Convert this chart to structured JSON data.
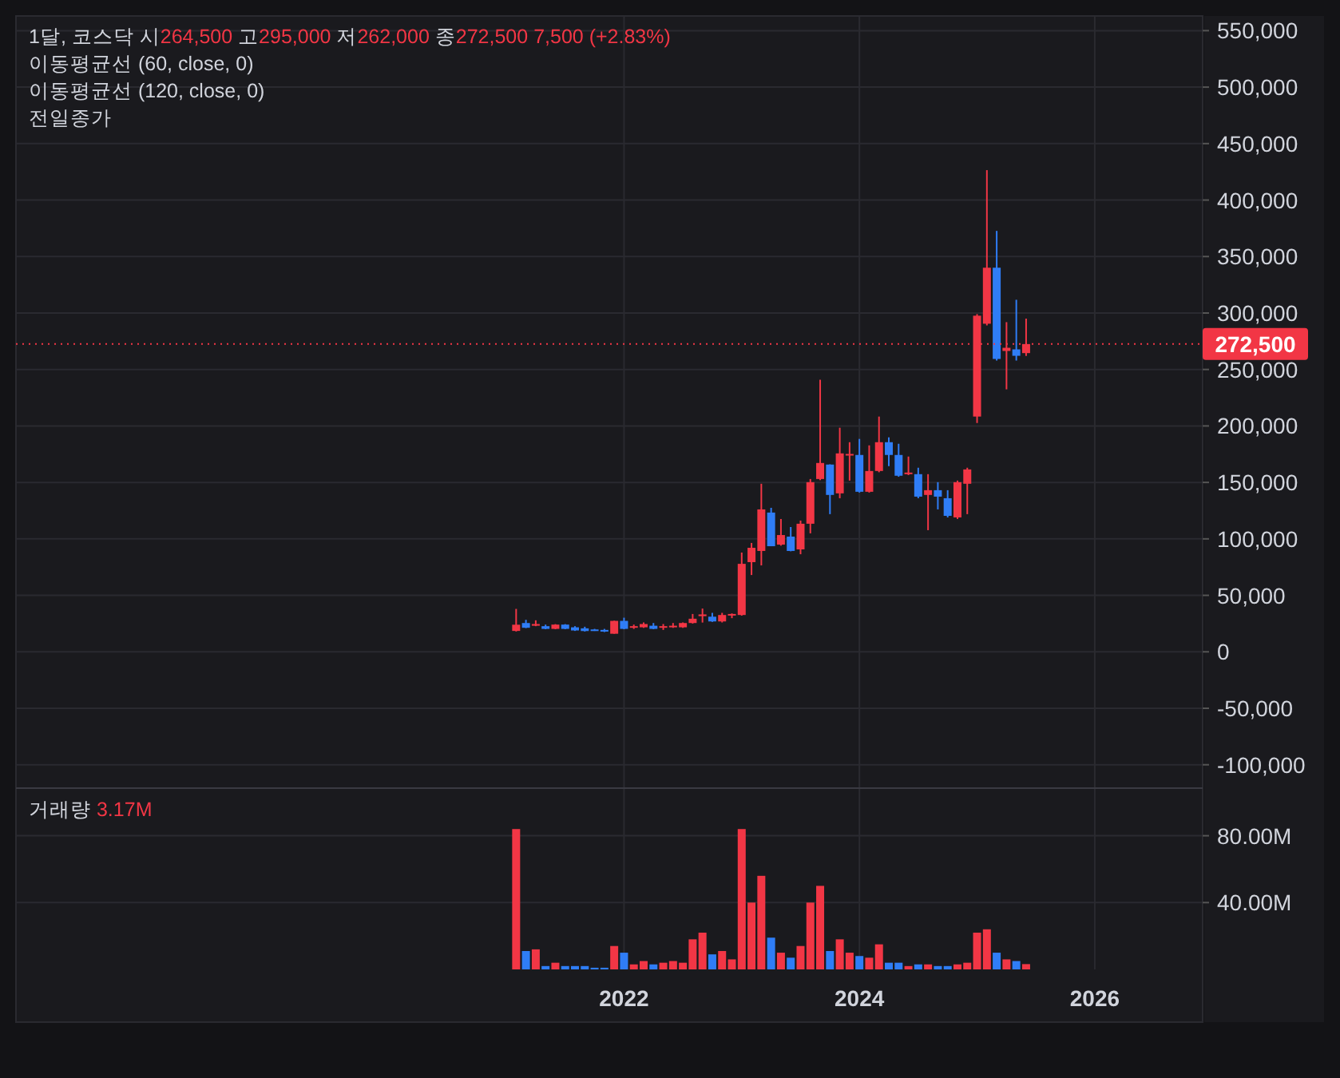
{
  "chart_data": [
    {
      "type": "candlestick",
      "title": "1달, 코스닥",
      "annotations": [
        "시264,500",
        "고295,000",
        "저262,000",
        "종272,500",
        "7,500 (+2.83%)",
        "이동평균선 (60, close, 0)",
        "이동평균선 (120, close, 0)",
        "전일종가"
      ],
      "x": [
        "2021-02",
        "2021-03",
        "2021-04",
        "2021-05",
        "2021-06",
        "2021-07",
        "2021-08",
        "2021-09",
        "2021-10",
        "2021-11",
        "2021-12",
        "2022-01",
        "2022-02",
        "2022-03",
        "2022-04",
        "2022-05",
        "2022-06",
        "2022-07",
        "2022-08",
        "2022-09",
        "2022-10",
        "2022-11",
        "2022-12",
        "2023-01",
        "2023-02",
        "2023-03",
        "2023-04",
        "2023-05",
        "2023-06",
        "2023-07",
        "2023-08",
        "2023-09",
        "2023-10",
        "2023-11",
        "2023-12",
        "2024-01",
        "2024-02",
        "2024-03",
        "2024-04",
        "2024-05",
        "2024-06",
        "2024-07",
        "2024-08",
        "2024-09",
        "2024-10",
        "2024-11",
        "2024-12",
        "2025-01",
        "2025-02",
        "2025-03",
        "2025-04",
        "2025-05",
        "2025-06"
      ],
      "ohlc": [
        [
          18500,
          38000,
          18000,
          24000
        ],
        [
          25500,
          28300,
          21000,
          21300
        ],
        [
          23100,
          27900,
          22700,
          24600
        ],
        [
          22700,
          24100,
          20000,
          20300
        ],
        [
          20300,
          24500,
          20000,
          24100
        ],
        [
          24100,
          24500,
          20000,
          20300
        ],
        [
          21700,
          22700,
          18500,
          18900
        ],
        [
          20800,
          22200,
          18000,
          18400
        ],
        [
          19800,
          20300,
          18500,
          18900
        ],
        [
          19400,
          20300,
          17500,
          17900
        ],
        [
          16000,
          27500,
          16000,
          27400
        ],
        [
          27400,
          30200,
          20000,
          20300
        ],
        [
          21700,
          24100,
          20300,
          22700
        ],
        [
          21700,
          26000,
          21200,
          24600
        ],
        [
          23100,
          25500,
          20000,
          20300
        ],
        [
          21700,
          24600,
          19400,
          22700
        ],
        [
          21700,
          25500,
          21200,
          23100
        ],
        [
          21700,
          26000,
          21200,
          25500
        ],
        [
          25500,
          33500,
          25000,
          29300
        ],
        [
          31600,
          38300,
          25900,
          33100
        ],
        [
          31100,
          34500,
          26500,
          26900
        ],
        [
          26900,
          34500,
          26000,
          32600
        ],
        [
          32600,
          34000,
          29800,
          33500
        ],
        [
          32600,
          87900,
          32000,
          77900
        ],
        [
          79400,
          96400,
          68000,
          92100
        ],
        [
          89300,
          148800,
          76500,
          126100
        ],
        [
          123300,
          127500,
          93500,
          93500
        ],
        [
          94900,
          117600,
          94000,
          103400
        ],
        [
          102000,
          110500,
          89000,
          89300
        ],
        [
          90700,
          116200,
          86400,
          113400
        ],
        [
          113400,
          153000,
          104900,
          150200
        ],
        [
          153000,
          240900,
          152000,
          167200
        ],
        [
          165800,
          166000,
          121900,
          138900
        ],
        [
          140300,
          198400,
          136000,
          175700
        ],
        [
          173800,
          185600,
          151600,
          175200
        ],
        [
          174300,
          188500,
          141000,
          141700
        ],
        [
          141700,
          182800,
          141000,
          160100
        ],
        [
          160100,
          208300,
          159000,
          185600
        ],
        [
          185600,
          189900,
          164400,
          174300
        ],
        [
          174300,
          184200,
          155000,
          155900
        ],
        [
          157300,
          172900,
          156500,
          158700
        ],
        [
          157300,
          163000,
          136000,
          137400
        ],
        [
          138900,
          157300,
          107700,
          143100
        ],
        [
          143100,
          150200,
          126100,
          137400
        ],
        [
          136000,
          143100,
          119000,
          120400
        ],
        [
          119000,
          151600,
          117600,
          150200
        ],
        [
          148800,
          163000,
          121900,
          161500
        ],
        [
          208300,
          299000,
          202600,
          297600
        ],
        [
          290500,
          426500,
          289000,
          340100
        ],
        [
          340100,
          372700,
          257900,
          259300
        ],
        [
          266400,
          291900,
          232400,
          269200
        ],
        [
          267800,
          311700,
          257900,
          262100
        ],
        [
          264500,
          295000,
          262000,
          272500
        ]
      ],
      "colors": [
        "#f23645",
        "#2f7df6",
        "#f23645",
        "#2f7df6",
        "#f23645",
        "#2f7df6",
        "#2f7df6",
        "#2f7df6",
        "#2f7df6",
        "#2f7df6",
        "#f23645",
        "#2f7df6",
        "#f23645",
        "#f23645",
        "#2f7df6",
        "#f23645",
        "#f23645",
        "#f23645",
        "#f23645",
        "#f23645",
        "#2f7df6",
        "#f23645",
        "#f23645",
        "#f23645",
        "#f23645",
        "#f23645",
        "#2f7df6",
        "#f23645",
        "#2f7df6",
        "#f23645",
        "#f23645",
        "#f23645",
        "#2f7df6",
        "#f23645",
        "#f23645",
        "#2f7df6",
        "#f23645",
        "#f23645",
        "#2f7df6",
        "#2f7df6",
        "#f23645",
        "#2f7df6",
        "#f23645",
        "#2f7df6",
        "#2f7df6",
        "#f23645",
        "#f23645",
        "#f23645",
        "#f23645",
        "#2f7df6",
        "#f23645",
        "#2f7df6",
        "#f23645"
      ],
      "xlim": [
        "2016-11",
        "2026-12"
      ],
      "xticks": [
        {
          "value": "2022-01",
          "label": null
        },
        {
          "value": "2024-01",
          "label": null
        },
        {
          "value": "2026-01",
          "label": null
        }
      ],
      "ylim": [
        -120000,
        563000
      ],
      "yticks": [
        {
          "value": -100000,
          "label": "-100,000"
        },
        {
          "value": -50000,
          "label": "-50,000"
        },
        0,
        {
          "value": 50000,
          "label": "50,000"
        },
        {
          "value": 100000,
          "label": "100,000"
        },
        {
          "value": 150000,
          "label": "150,000"
        },
        {
          "value": 200000,
          "label": "200,000"
        },
        {
          "value": 250000,
          "label": "250,000"
        },
        {
          "value": 300000,
          "label": "300,000"
        },
        {
          "value": 350000,
          "label": "350,000"
        },
        {
          "value": 400000,
          "label": "400,000"
        },
        {
          "value": 450000,
          "label": "450,000"
        },
        {
          "value": 500000,
          "label": "500,000"
        },
        {
          "value": 550000,
          "label": "550,000"
        }
      ],
      "ref_lines": [
        {
          "axis": "y",
          "value": 272500,
          "label": "272,500",
          "color": "#f23645",
          "line_style": "dotted"
        }
      ],
      "grid": true,
      "tick_labels": "y"
    },
    {
      "type": "bar",
      "title": "거래량",
      "annotations": [
        "3.17M"
      ],
      "x": [
        "2021-02",
        "2021-03",
        "2021-04",
        "2021-05",
        "2021-06",
        "2021-07",
        "2021-08",
        "2021-09",
        "2021-10",
        "2021-11",
        "2021-12",
        "2022-01",
        "2022-02",
        "2022-03",
        "2022-04",
        "2022-05",
        "2022-06",
        "2022-07",
        "2022-08",
        "2022-09",
        "2022-10",
        "2022-11",
        "2022-12",
        "2023-01",
        "2023-02",
        "2023-03",
        "2023-04",
        "2023-05",
        "2023-06",
        "2023-07",
        "2023-08",
        "2023-09",
        "2023-10",
        "2023-11",
        "2023-12",
        "2024-01",
        "2024-02",
        "2024-03",
        "2024-04",
        "2024-05",
        "2024-06",
        "2024-07",
        "2024-08",
        "2024-09",
        "2024-10",
        "2024-11",
        "2024-12",
        "2025-01",
        "2025-02",
        "2025-03",
        "2025-04",
        "2025-05",
        "2025-06"
      ],
      "values": [
        84000000,
        11000000,
        12000000,
        2000000,
        4000000,
        2000000,
        2000000,
        2000000,
        1000000,
        1000000,
        14000000,
        10000000,
        3000000,
        5000000,
        3000000,
        4000000,
        5000000,
        4000000,
        18000000,
        22000000,
        9000000,
        11000000,
        6000000,
        84000000,
        40000000,
        56000000,
        19000000,
        10000000,
        7000000,
        14000000,
        40000000,
        50000000,
        11000000,
        18000000,
        10000000,
        8000000,
        7000000,
        15000000,
        4000000,
        4000000,
        2000000,
        3000000,
        3000000,
        2000000,
        2000000,
        3000000,
        4000000,
        22000000,
        24000000,
        10000000,
        6000000,
        5000000,
        3170000
      ],
      "colors": [
        "#f23645",
        "#2f7df6",
        "#f23645",
        "#2f7df6",
        "#f23645",
        "#2f7df6",
        "#2f7df6",
        "#2f7df6",
        "#2f7df6",
        "#2f7df6",
        "#f23645",
        "#2f7df6",
        "#f23645",
        "#f23645",
        "#2f7df6",
        "#f23645",
        "#f23645",
        "#f23645",
        "#f23645",
        "#f23645",
        "#2f7df6",
        "#f23645",
        "#f23645",
        "#f23645",
        "#f23645",
        "#f23645",
        "#2f7df6",
        "#f23645",
        "#2f7df6",
        "#f23645",
        "#f23645",
        "#f23645",
        "#2f7df6",
        "#f23645",
        "#f23645",
        "#2f7df6",
        "#f23645",
        "#f23645",
        "#2f7df6",
        "#2f7df6",
        "#f23645",
        "#2f7df6",
        "#f23645",
        "#2f7df6",
        "#2f7df6",
        "#f23645",
        "#f23645",
        "#f23645",
        "#f23645",
        "#2f7df6",
        "#f23645",
        "#2f7df6",
        "#f23645"
      ],
      "xlim": [
        "2016-11",
        "2026-12"
      ],
      "xticks": [
        {
          "value": "2022-01",
          "label": "2022"
        },
        {
          "value": "2024-01",
          "label": "2024"
        },
        {
          "value": "2026-01",
          "label": "2026"
        }
      ],
      "ylim": [
        0,
        108000000
      ],
      "yticks": [
        {
          "value": 40000000,
          "label": "40.00M"
        },
        {
          "value": 80000000,
          "label": "80.00M"
        }
      ],
      "grid": true
    }
  ]
}
